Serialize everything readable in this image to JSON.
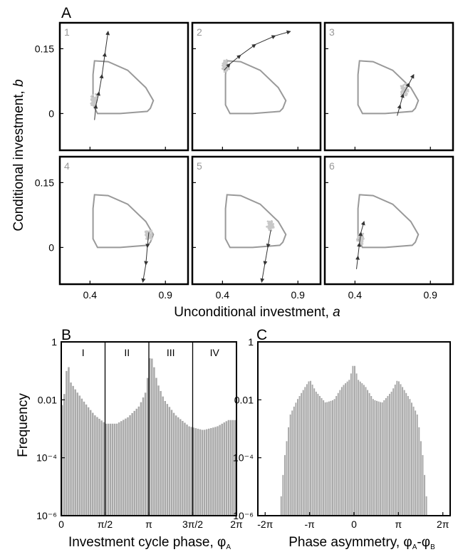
{
  "panel_A": {
    "label": "A",
    "ylabel_pre": "Conditional investment, ",
    "ylabel_var": "b",
    "xlabel": "Unconditional investment, ",
    "xlabel_var": "a",
    "subplots": [
      "1",
      "2",
      "3",
      "4",
      "5",
      "6"
    ]
  },
  "panel_B": {
    "label": "B",
    "ylabel": "Frequency",
    "xlabel_pre": "Investment cycle phase, φ",
    "xlabel_sub": "A",
    "phase_labels": [
      "I",
      "II",
      "III",
      "IV"
    ]
  },
  "panel_C": {
    "label": "C",
    "xlabel_pre": "Phase asymmetry, φ",
    "xlabel_sub1": "A",
    "xlabel_mid": "-φ",
    "xlabel_sub2": "B"
  },
  "colors": {
    "line": "#999999",
    "scatter": "#c8c8c8",
    "arrow": "#333333",
    "bar": "#a9a9a9"
  },
  "chart_data": [
    {
      "type": "line",
      "name": "A",
      "xlim": [
        0.2,
        1.05
      ],
      "ylim": [
        -0.085,
        0.21
      ],
      "xticks": [
        {
          "value": 0.4,
          "label": "0.4"
        },
        {
          "value": 0.9,
          "label": "0.9"
        }
      ],
      "yticks": [
        {
          "value": 0,
          "label": "0"
        },
        {
          "value": 0.15,
          "label": "0.15"
        }
      ],
      "cycle": [
        [
          0.42,
          0.02
        ],
        [
          0.45,
          0.0
        ],
        [
          0.6,
          0.0
        ],
        [
          0.78,
          0.005
        ],
        [
          0.8,
          0.012
        ],
        [
          0.82,
          0.03
        ],
        [
          0.77,
          0.06
        ],
        [
          0.65,
          0.1
        ],
        [
          0.52,
          0.12
        ],
        [
          0.43,
          0.122
        ],
        [
          0.42,
          0.09
        ],
        [
          0.42,
          0.05
        ]
      ],
      "subplots": [
        {
          "label": "1",
          "trajectory": [
            [
              0.43,
              -0.015
            ],
            [
              0.44,
              0.02
            ],
            [
              0.46,
              0.05
            ],
            [
              0.48,
              0.09
            ],
            [
              0.5,
              0.14
            ],
            [
              0.52,
              0.19
            ]
          ],
          "cluster": [
            0.43,
            0.03
          ]
        },
        {
          "label": "2",
          "trajectory": [
            [
              0.41,
              0.1
            ],
            [
              0.45,
              0.115
            ],
            [
              0.52,
              0.135
            ],
            [
              0.62,
              0.16
            ],
            [
              0.75,
              0.18
            ],
            [
              0.85,
              0.19
            ]
          ],
          "cluster": [
            0.42,
            0.11
          ]
        },
        {
          "label": "3",
          "trajectory": [
            [
              0.68,
              -0.005
            ],
            [
              0.7,
              0.02
            ],
            [
              0.72,
              0.045
            ],
            [
              0.76,
              0.07
            ],
            [
              0.79,
              0.09
            ]
          ],
          "cluster": [
            0.73,
            0.055
          ]
        },
        {
          "label": "4",
          "trajectory": [
            [
              0.79,
              0.035
            ],
            [
              0.78,
              0.0
            ],
            [
              0.77,
              -0.04
            ],
            [
              0.75,
              -0.08
            ]
          ],
          "cluster": [
            0.79,
            0.03
          ]
        },
        {
          "label": "5",
          "trajectory": [
            [
              0.72,
              0.04
            ],
            [
              0.7,
              0.0
            ],
            [
              0.68,
              -0.04
            ],
            [
              0.66,
              -0.08
            ]
          ],
          "cluster": [
            0.72,
            0.05
          ]
        },
        {
          "label": "6",
          "trajectory": [
            [
              0.41,
              -0.05
            ],
            [
              0.42,
              -0.02
            ],
            [
              0.43,
              0.01
            ],
            [
              0.44,
              0.035
            ],
            [
              0.46,
              0.06
            ]
          ],
          "cluster": [
            0.44,
            0.02
          ]
        }
      ]
    },
    {
      "type": "bar",
      "name": "B",
      "ylabel": "Frequency",
      "yscale": "log",
      "ylim": [
        1e-06,
        1
      ],
      "yticks": [
        {
          "value": 1,
          "label": "1"
        },
        {
          "value": 0.01,
          "label": "0.01"
        },
        {
          "value": 0.0001,
          "label": "10⁻⁴"
        },
        {
          "value": 1e-06,
          "label": "10⁻⁶"
        }
      ],
      "xlim": [
        0,
        6.2832
      ],
      "xticks": [
        {
          "value": 0,
          "label": "0"
        },
        {
          "value": 1.5708,
          "label": "π/2"
        },
        {
          "value": 3.1416,
          "label": "π"
        },
        {
          "value": 4.7124,
          "label": "3π/2"
        },
        {
          "value": 6.2832,
          "label": "2π"
        }
      ],
      "boundaries": [
        1.5708,
        3.1416,
        4.7124
      ],
      "profile": [
        [
          0.0,
          0.005
        ],
        [
          0.1,
          0.01
        ],
        [
          0.18,
          0.08
        ],
        [
          0.25,
          0.2
        ],
        [
          0.35,
          0.04
        ],
        [
          0.55,
          0.02
        ],
        [
          0.85,
          0.008
        ],
        [
          1.2,
          0.003
        ],
        [
          1.6,
          0.0015
        ],
        [
          2.0,
          0.0015
        ],
        [
          2.4,
          0.0025
        ],
        [
          2.8,
          0.006
        ],
        [
          3.05,
          0.02
        ],
        [
          3.2,
          0.4
        ],
        [
          3.3,
          0.2
        ],
        [
          3.45,
          0.04
        ],
        [
          3.7,
          0.01
        ],
        [
          4.1,
          0.003
        ],
        [
          4.6,
          0.0012
        ],
        [
          5.1,
          0.0009
        ],
        [
          5.6,
          0.0012
        ],
        [
          6.0,
          0.002
        ],
        [
          6.2832,
          0.002
        ]
      ]
    },
    {
      "type": "bar",
      "name": "C",
      "yscale": "log",
      "ylim": [
        1e-06,
        1
      ],
      "yticks": [
        {
          "value": 1,
          "label": "1"
        },
        {
          "value": 0.01,
          "label": "0.01"
        },
        {
          "value": 0.0001,
          "label": "10⁻⁴"
        },
        {
          "value": 1e-06,
          "label": "10⁻⁶"
        }
      ],
      "xlim": [
        -6.8,
        6.8
      ],
      "xticks": [
        {
          "value": -6.2832,
          "label": "-2π"
        },
        {
          "value": -3.1416,
          "label": "-π"
        },
        {
          "value": 0,
          "label": "0"
        },
        {
          "value": 3.1416,
          "label": "π"
        },
        {
          "value": 6.2832,
          "label": "2π"
        }
      ],
      "profile": [
        [
          -5.2,
          2e-06
        ],
        [
          -4.9,
          0.0001
        ],
        [
          -4.5,
          0.003
        ],
        [
          -4.0,
          0.01
        ],
        [
          -3.4,
          0.03
        ],
        [
          -3.1,
          0.05
        ],
        [
          -2.7,
          0.02
        ],
        [
          -2.0,
          0.008
        ],
        [
          -1.4,
          0.01
        ],
        [
          -0.8,
          0.03
        ],
        [
          -0.3,
          0.05
        ],
        [
          0,
          0.2
        ],
        [
          0.3,
          0.05
        ],
        [
          0.8,
          0.03
        ],
        [
          1.4,
          0.01
        ],
        [
          2.0,
          0.008
        ],
        [
          2.7,
          0.02
        ],
        [
          3.1,
          0.05
        ],
        [
          3.4,
          0.03
        ],
        [
          4.0,
          0.01
        ],
        [
          4.5,
          0.003
        ],
        [
          4.9,
          0.0001
        ],
        [
          5.2,
          2e-06
        ]
      ]
    }
  ]
}
